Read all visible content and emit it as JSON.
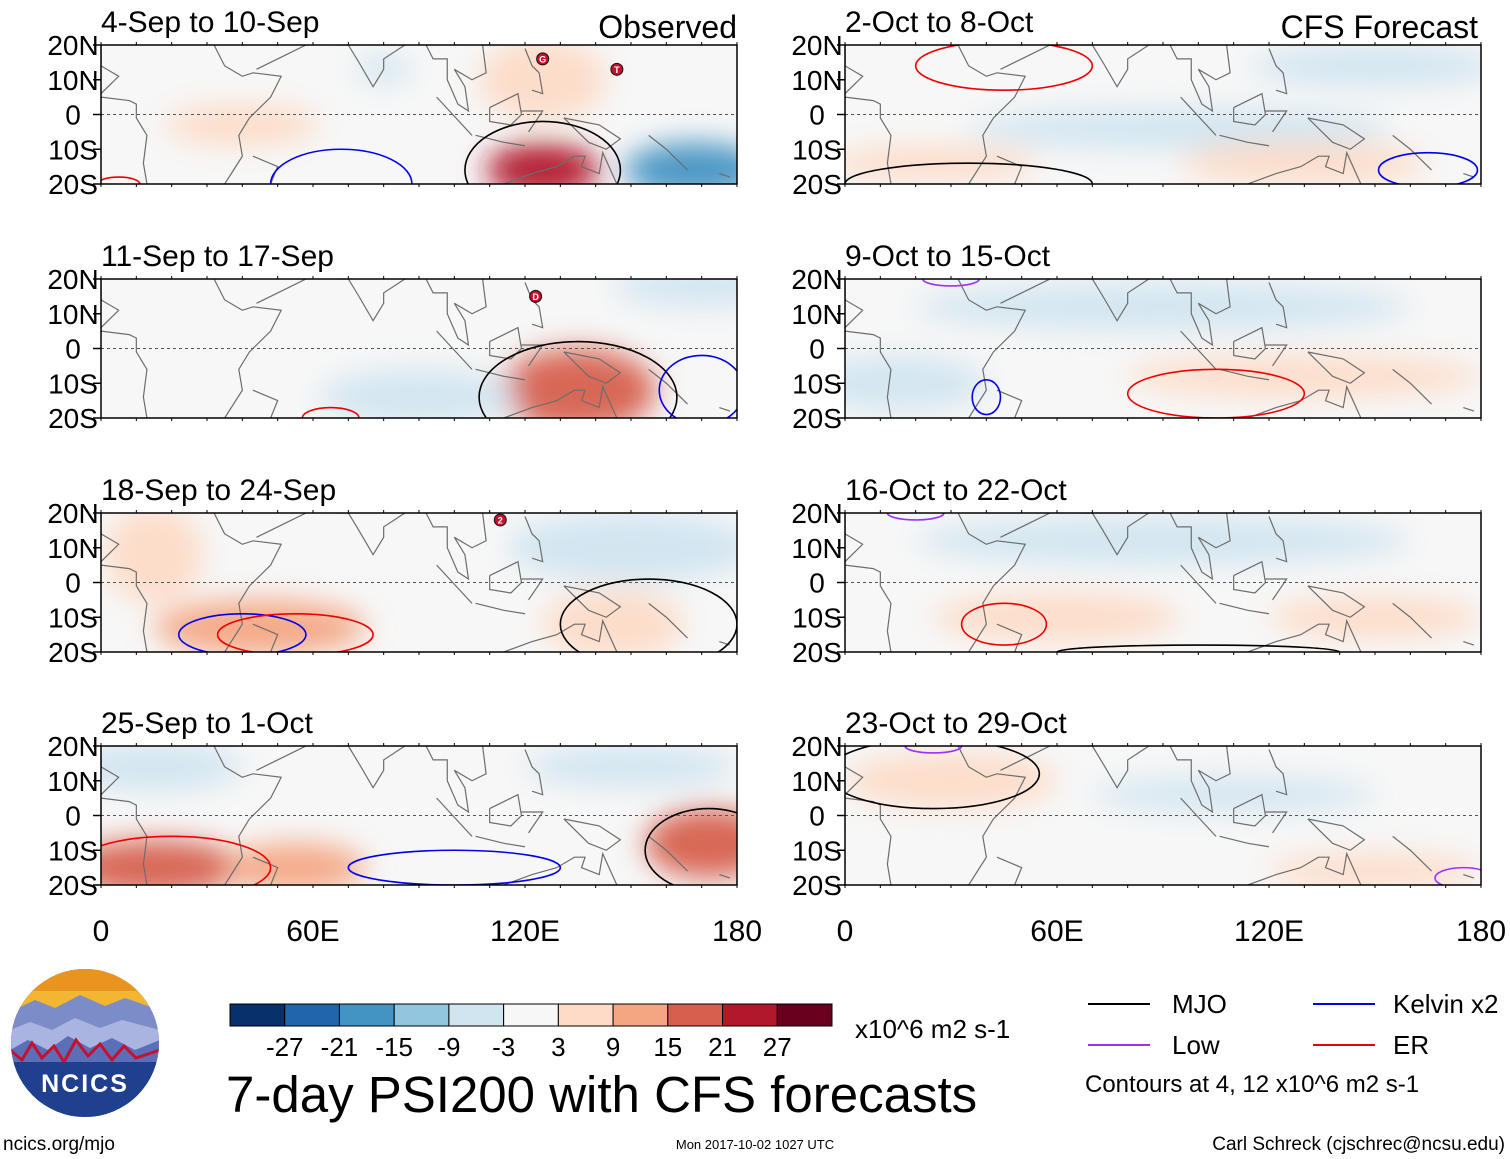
{
  "chart_data": {
    "type": "heatmap",
    "title": "7-day PSI200 with CFS forecasts",
    "units": "x10^6 m2 s-1",
    "observed_label": "Observed",
    "forecast_label": "CFS Forecast",
    "x_ticks": [
      "0",
      "60E",
      "120E",
      "180"
    ],
    "x_range": [
      0,
      180
    ],
    "y_ticks": [
      "20N",
      "10N",
      "0",
      "10S",
      "20S"
    ],
    "y_range": [
      -20,
      20
    ],
    "colorbar": {
      "labels": [
        "-27",
        "-21",
        "-15",
        "-9",
        "-3",
        "3",
        "9",
        "15",
        "21",
        "27"
      ],
      "colors": [
        "#08306b",
        "#2166ac",
        "#4393c3",
        "#92c5de",
        "#d1e5f0",
        "#f7f7f7",
        "#fddbc7",
        "#f4a582",
        "#d6604d",
        "#b2182b",
        "#67001f"
      ]
    },
    "legend": [
      {
        "name": "MJO",
        "color": "#000000"
      },
      {
        "name": "Kelvin x2",
        "color": "#0000ee"
      },
      {
        "name": "Low",
        "color": "#9b30ff"
      },
      {
        "name": "ER",
        "color": "#ee0000"
      }
    ],
    "contour_note": "Contours at 4, 12 x10^6 m2 s-1",
    "panels": [
      {
        "period": "4-Sep to 10-Sep",
        "kind": "observed",
        "storms": [
          {
            "lon": 125,
            "lat": 16,
            "label": "G"
          },
          {
            "lon": 146,
            "lat": 13,
            "label": "T"
          }
        ],
        "anomalies": [
          {
            "lon": 40,
            "lat": -3,
            "rlon": 22,
            "rlat": 6,
            "value": 6
          },
          {
            "lon": 125,
            "lat": 10,
            "rlon": 18,
            "rlat": 12,
            "value": 6
          },
          {
            "lon": 125,
            "lat": -16,
            "rlon": 16,
            "rlat": 8,
            "value": 22
          },
          {
            "lon": 168,
            "lat": -16,
            "rlon": 20,
            "rlat": 8,
            "value": -20
          },
          {
            "lon": 80,
            "lat": 13,
            "rlon": 8,
            "rlat": 4,
            "value": -5
          }
        ],
        "contours": [
          {
            "type": "MJO",
            "lon": 125,
            "lat": -16,
            "rlon": 22,
            "rlat": 14
          },
          {
            "type": "Kelvin x2",
            "lon": 68,
            "lat": -20,
            "rlon": 20,
            "rlat": 10
          },
          {
            "type": "ER",
            "lon": 5,
            "lat": -20,
            "rlon": 6,
            "rlat": 2
          }
        ]
      },
      {
        "period": "11-Sep to 17-Sep",
        "kind": "observed",
        "storms": [
          {
            "lon": 123,
            "lat": 15,
            "label": "D"
          }
        ],
        "anomalies": [
          {
            "lon": 135,
            "lat": -12,
            "rlon": 22,
            "rlat": 12,
            "value": 18
          },
          {
            "lon": 90,
            "lat": -14,
            "rlon": 28,
            "rlat": 8,
            "value": -4
          },
          {
            "lon": 170,
            "lat": 18,
            "rlon": 25,
            "rlat": 6,
            "value": -6
          }
        ],
        "contours": [
          {
            "type": "MJO",
            "lon": 135,
            "lat": -14,
            "rlon": 28,
            "rlat": 16
          },
          {
            "type": "Kelvin x2",
            "lon": 170,
            "lat": -12,
            "rlon": 12,
            "rlat": 10
          },
          {
            "type": "ER",
            "lon": 65,
            "lat": -20,
            "rlon": 8,
            "rlat": 3
          }
        ]
      },
      {
        "period": "18-Sep to 24-Sep",
        "kind": "observed",
        "storms": [
          {
            "lon": 113,
            "lat": 18,
            "label": "2"
          }
        ],
        "anomalies": [
          {
            "lon": 45,
            "lat": -13,
            "rlon": 30,
            "rlat": 8,
            "value": 12
          },
          {
            "lon": 15,
            "lat": 8,
            "rlon": 14,
            "rlat": 14,
            "value": 6
          },
          {
            "lon": 145,
            "lat": -12,
            "rlon": 20,
            "rlat": 10,
            "value": 9
          },
          {
            "lon": 150,
            "lat": 10,
            "rlon": 35,
            "rlat": 10,
            "value": -5
          }
        ],
        "contours": [
          {
            "type": "MJO",
            "lon": 155,
            "lat": -12,
            "rlon": 25,
            "rlat": 13
          },
          {
            "type": "Kelvin x2",
            "lon": 40,
            "lat": -15,
            "rlon": 18,
            "rlat": 6
          },
          {
            "type": "ER",
            "lon": 55,
            "lat": -15,
            "rlon": 22,
            "rlat": 6
          }
        ]
      },
      {
        "period": "25-Sep to 1-Oct",
        "kind": "observed",
        "storms": [],
        "anomalies": [
          {
            "lon": 15,
            "lat": -15,
            "rlon": 25,
            "rlat": 8,
            "value": 18
          },
          {
            "lon": 55,
            "lat": -15,
            "rlon": 20,
            "rlat": 7,
            "value": 12
          },
          {
            "lon": 172,
            "lat": -8,
            "rlon": 18,
            "rlat": 10,
            "value": 18
          },
          {
            "lon": 15,
            "lat": 14,
            "rlon": 25,
            "rlat": 7,
            "value": -6
          },
          {
            "lon": 150,
            "lat": 14,
            "rlon": 30,
            "rlat": 6,
            "value": -4
          }
        ],
        "contours": [
          {
            "type": "MJO",
            "lon": 172,
            "lat": -10,
            "rlon": 18,
            "rlat": 12
          },
          {
            "type": "ER",
            "lon": 20,
            "lat": -15,
            "rlon": 28,
            "rlat": 9
          },
          {
            "type": "Kelvin x2",
            "lon": 100,
            "lat": -15,
            "rlon": 30,
            "rlat": 5
          }
        ]
      },
      {
        "period": "2-Oct to 8-Oct",
        "kind": "forecast",
        "storms": [],
        "anomalies": [
          {
            "lon": 95,
            "lat": -4,
            "rlon": 60,
            "rlat": 6,
            "value": -5
          },
          {
            "lon": 150,
            "lat": 14,
            "rlon": 35,
            "rlat": 6,
            "value": -5
          },
          {
            "lon": 130,
            "lat": -14,
            "rlon": 35,
            "rlat": 6,
            "value": 6
          },
          {
            "lon": 25,
            "lat": -14,
            "rlon": 30,
            "rlat": 5,
            "value": 5
          }
        ],
        "contours": [
          {
            "type": "ER",
            "lon": 45,
            "lat": 14,
            "rlon": 25,
            "rlat": 7
          },
          {
            "type": "Kelvin x2",
            "lon": 165,
            "lat": -16,
            "rlon": 14,
            "rlat": 5
          },
          {
            "type": "MJO",
            "lon": 35,
            "lat": -20,
            "rlon": 35,
            "rlat": 6
          }
        ]
      },
      {
        "period": "9-Oct to 15-Oct",
        "kind": "forecast",
        "storms": [],
        "anomalies": [
          {
            "lon": 90,
            "lat": 12,
            "rlon": 70,
            "rlat": 7,
            "value": -6
          },
          {
            "lon": 15,
            "lat": -10,
            "rlon": 25,
            "rlat": 8,
            "value": -7
          },
          {
            "lon": 130,
            "lat": -8,
            "rlon": 50,
            "rlat": 6,
            "value": 5
          }
        ],
        "contours": [
          {
            "type": "ER",
            "lon": 105,
            "lat": -13,
            "rlon": 25,
            "rlat": 7
          },
          {
            "type": "Kelvin x2",
            "lon": 40,
            "lat": -14,
            "rlon": 4,
            "rlat": 5
          },
          {
            "type": "Low",
            "lon": 30,
            "lat": 20,
            "rlon": 8,
            "rlat": 2
          }
        ]
      },
      {
        "period": "16-Oct to 22-Oct",
        "kind": "forecast",
        "storms": [],
        "anomalies": [
          {
            "lon": 90,
            "lat": 12,
            "rlon": 70,
            "rlat": 7,
            "value": -5
          },
          {
            "lon": 60,
            "lat": -10,
            "rlon": 35,
            "rlat": 7,
            "value": 9
          },
          {
            "lon": 150,
            "lat": -10,
            "rlon": 30,
            "rlat": 6,
            "value": 5
          }
        ],
        "contours": [
          {
            "type": "ER",
            "lon": 45,
            "lat": -12,
            "rlon": 12,
            "rlat": 6
          },
          {
            "type": "MJO",
            "lon": 100,
            "lat": -20,
            "rlon": 40,
            "rlat": 2
          },
          {
            "type": "Low",
            "lon": 20,
            "lat": 20,
            "rlon": 8,
            "rlat": 2
          }
        ]
      },
      {
        "period": "23-Oct to 29-Oct",
        "kind": "forecast",
        "storms": [],
        "anomalies": [
          {
            "lon": 30,
            "lat": 10,
            "rlon": 30,
            "rlat": 8,
            "value": 7
          },
          {
            "lon": 110,
            "lat": 6,
            "rlon": 40,
            "rlat": 5,
            "value": -4
          },
          {
            "lon": 150,
            "lat": -16,
            "rlon": 30,
            "rlat": 5,
            "value": 5
          }
        ],
        "contours": [
          {
            "type": "MJO",
            "lon": 25,
            "lat": 12,
            "rlon": 30,
            "rlat": 10
          },
          {
            "type": "Low",
            "lon": 25,
            "lat": 20,
            "rlon": 8,
            "rlat": 2
          },
          {
            "type": "Low",
            "lon": 175,
            "lat": -18,
            "rlon": 8,
            "rlat": 3
          }
        ]
      }
    ]
  },
  "footer": {
    "logo_text": "NCICS",
    "site": "ncics.org/mjo",
    "timestamp": "Mon 2017-10-02 1027 UTC",
    "author": "Carl Schreck (cjschrec@ncsu.edu)"
  }
}
